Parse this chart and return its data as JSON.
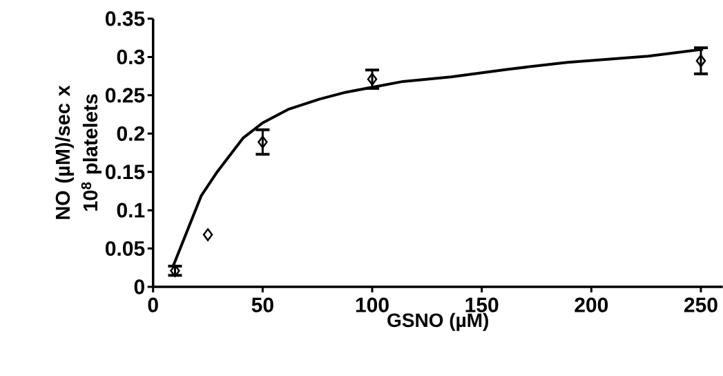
{
  "chart_data": {
    "type": "scatter",
    "xlabel": "GSNO (µM)",
    "ylabel": "NO (µM)/sec x 10$^{8}$ platelets",
    "xlim": [
      0,
      260
    ],
    "ylim": [
      0,
      0.35
    ],
    "xticks": [
      0,
      50,
      100,
      150,
      200,
      250
    ],
    "yticks": [
      0,
      0.05,
      0.1,
      0.15,
      0.2,
      0.25,
      0.3,
      0.35
    ],
    "series": [
      {
        "type": "scatter",
        "color": "#000000",
        "marker": "diamond",
        "x": [
          10,
          25,
          50,
          100,
          250
        ],
        "values": [
          0.021,
          0.068,
          0.189,
          0.271,
          0.295
        ],
        "errors": [
          0.006,
          null,
          0.016,
          0.012,
          0.017
        ]
      },
      {
        "type": "line",
        "color": "#000000",
        "marker": "none",
        "line_style": "solid",
        "x": [
          9,
          22,
          29,
          41,
          50,
          62,
          76,
          88,
          103,
          114,
          136,
          162,
          189,
          226,
          251
        ],
        "values": [
          0.026,
          0.119,
          0.149,
          0.194,
          0.214,
          0.232,
          0.245,
          0.254,
          0.262,
          0.268,
          0.274,
          0.284,
          0.293,
          0.301,
          0.31
        ]
      }
    ]
  }
}
